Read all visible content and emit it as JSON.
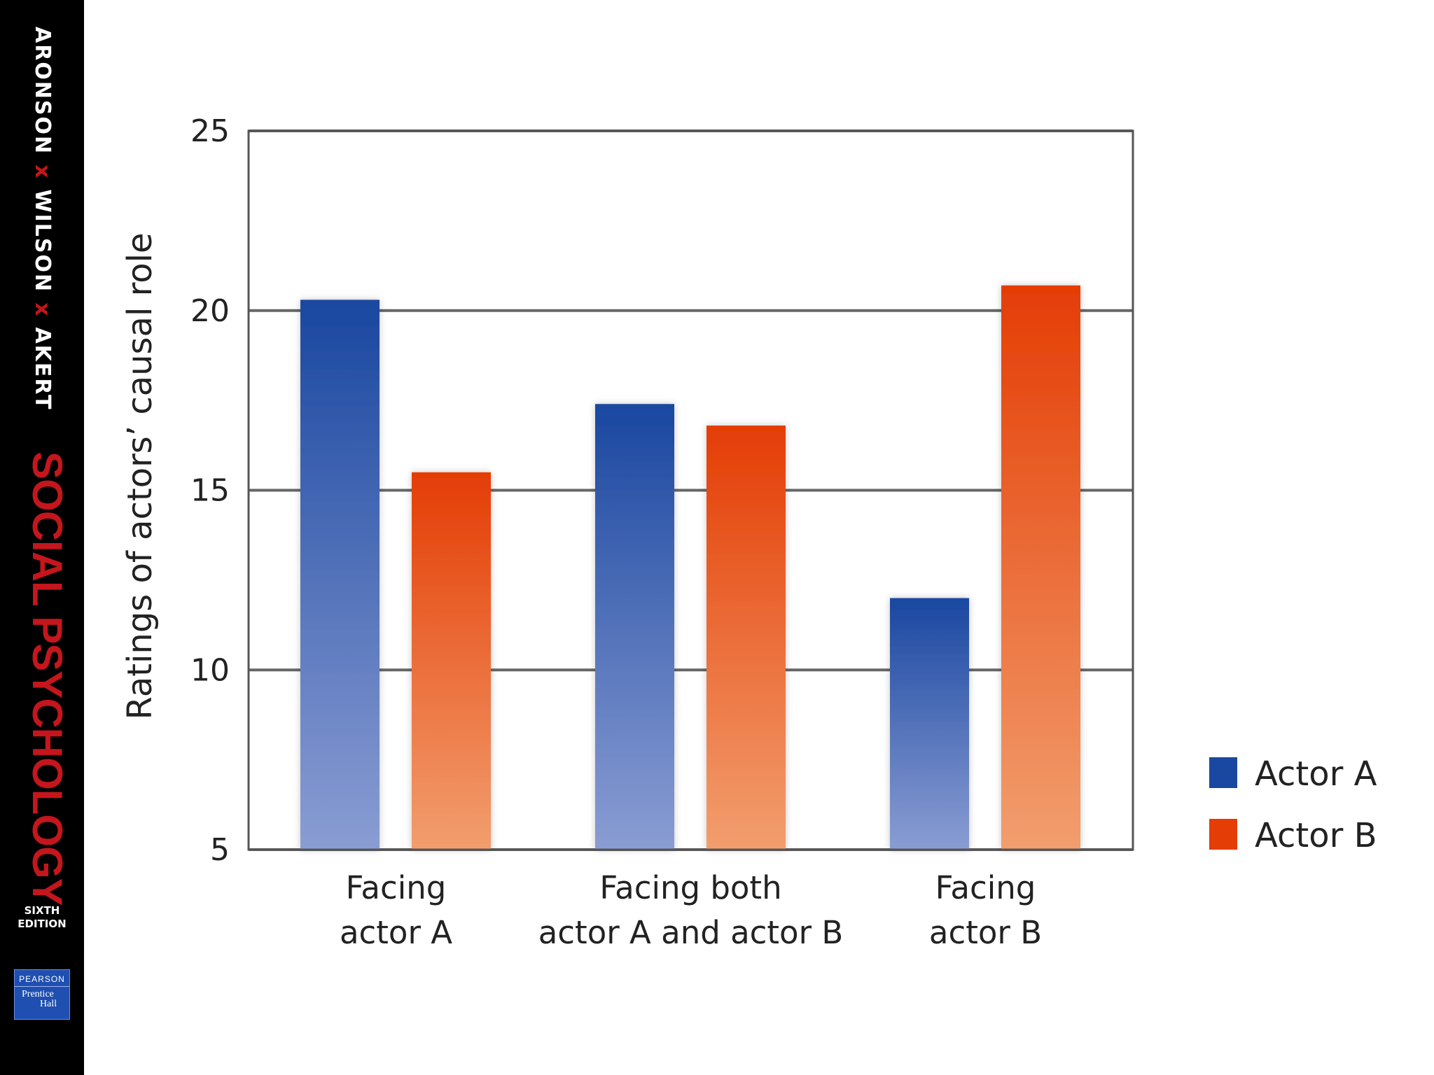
{
  "sidebar": {
    "authors": [
      "ARONSON",
      "WILSON",
      "AKERT"
    ],
    "separator": "x",
    "title": "SOCIAL PSYCHOLOGY",
    "edition_line1": "SIXTH",
    "edition_line2": "EDITION",
    "publisher": "PEARSON",
    "imprint_line1": "Prentice",
    "imprint_line2": "Hall"
  },
  "chart_data": {
    "type": "bar",
    "title": "",
    "xlabel": "",
    "ylabel": "Ratings of actors’ causal role",
    "ylim": [
      5,
      25
    ],
    "yticks": [
      5,
      10,
      15,
      20,
      25
    ],
    "grid": true,
    "legend_position": "right",
    "categories": [
      [
        "Facing",
        "actor A"
      ],
      [
        "Facing both",
        "actor A and actor B"
      ],
      [
        "Facing",
        "actor B"
      ]
    ],
    "series": [
      {
        "name": "Actor A",
        "color": "#1a47a0",
        "values": [
          20.3,
          17.4,
          12.0
        ]
      },
      {
        "name": "Actor B",
        "color": "#e43d05",
        "values": [
          15.5,
          16.8,
          20.7
        ]
      }
    ]
  }
}
